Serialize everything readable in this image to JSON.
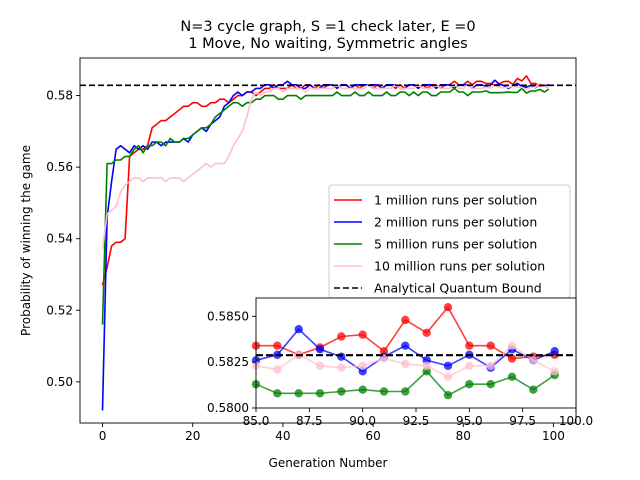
{
  "chart_data": [
    {
      "type": "line",
      "title": "N=3 cycle graph, S =1 check later, E =0\n1 Move, No waiting, Symmetric angles",
      "xlabel": "Generation Number",
      "ylabel": "Probability of winning the game",
      "xlim": [
        -5,
        105
      ],
      "ylim": [
        0.4885,
        0.5905
      ],
      "xticks": [
        0,
        20,
        40,
        60,
        80,
        100
      ],
      "yticks": [
        0.5,
        0.52,
        0.54,
        0.56,
        0.58
      ],
      "ytick_labels": [
        "0.50",
        "0.52",
        "0.54",
        "0.56",
        "0.58"
      ],
      "grid": false,
      "legend": "center-right",
      "reference_line": {
        "name": "Analytical Quantum Bound",
        "value": 0.58288,
        "color": "#000000",
        "style": "dashed"
      },
      "series": [
        {
          "name": "1 million runs per solution",
          "color": "#ff0000",
          "x": [
            0,
            1,
            2,
            3,
            4,
            5,
            6,
            7,
            8,
            9,
            10,
            11,
            12,
            13,
            14,
            15,
            16,
            17,
            18,
            19,
            20,
            21,
            22,
            23,
            24,
            25,
            26,
            27,
            28,
            29,
            30,
            31,
            32,
            33,
            34,
            35,
            36,
            37,
            38,
            39,
            40,
            41,
            42,
            43,
            44,
            45,
            46,
            47,
            48,
            49,
            50,
            51,
            52,
            53,
            54,
            55,
            56,
            57,
            58,
            59,
            60,
            61,
            62,
            63,
            64,
            65,
            66,
            67,
            68,
            69,
            70,
            71,
            72,
            73,
            74,
            75,
            76,
            77,
            78,
            79,
            80,
            81,
            82,
            83,
            84,
            85,
            86,
            87,
            88,
            89,
            90,
            91,
            92,
            93,
            94,
            95,
            96,
            97,
            98,
            99
          ],
          "values": [
            0.527,
            0.532,
            0.538,
            0.539,
            0.539,
            0.54,
            0.563,
            0.564,
            0.565,
            0.565,
            0.566,
            0.571,
            0.572,
            0.573,
            0.573,
            0.574,
            0.575,
            0.576,
            0.577,
            0.577,
            0.578,
            0.578,
            0.577,
            0.577,
            0.578,
            0.578,
            0.579,
            0.579,
            0.578,
            0.579,
            0.58,
            0.58,
            0.581,
            0.581,
            0.58,
            0.581,
            0.582,
            0.582,
            0.583,
            0.582,
            0.582,
            0.582,
            0.583,
            0.582,
            0.582,
            0.583,
            0.583,
            0.582,
            0.583,
            0.582,
            0.583,
            0.583,
            0.582,
            0.583,
            0.583,
            0.582,
            0.583,
            0.582,
            0.583,
            0.583,
            0.582,
            0.583,
            0.582,
            0.583,
            0.583,
            0.582,
            0.583,
            0.582,
            0.583,
            0.583,
            0.582,
            0.583,
            0.582,
            0.583,
            0.583,
            0.582,
            0.583,
            0.583,
            0.584,
            0.583,
            0.583,
            0.584,
            0.583,
            0.584,
            0.584,
            0.5834,
            0.5834,
            0.5829,
            0.5833,
            0.5839,
            0.584,
            0.5831,
            0.5848,
            0.5841,
            0.5855,
            0.5834,
            0.5834,
            0.5827,
            0.5828,
            0.5829
          ]
        },
        {
          "name": "2 million runs per solution",
          "color": "#0000ff",
          "x": [
            0,
            1,
            2,
            3,
            4,
            5,
            6,
            7,
            8,
            9,
            10,
            11,
            12,
            13,
            14,
            15,
            16,
            17,
            18,
            19,
            20,
            21,
            22,
            23,
            24,
            25,
            26,
            27,
            28,
            29,
            30,
            31,
            32,
            33,
            34,
            35,
            36,
            37,
            38,
            39,
            40,
            41,
            42,
            43,
            44,
            45,
            46,
            47,
            48,
            49,
            50,
            51,
            52,
            53,
            54,
            55,
            56,
            57,
            58,
            59,
            60,
            61,
            62,
            63,
            64,
            65,
            66,
            67,
            68,
            69,
            70,
            71,
            72,
            73,
            74,
            75,
            76,
            77,
            78,
            79,
            80,
            81,
            82,
            83,
            84,
            85,
            86,
            87,
            88,
            89,
            90,
            91,
            92,
            93,
            94,
            95,
            96,
            97,
            98,
            99
          ],
          "values": [
            0.492,
            0.546,
            0.556,
            0.565,
            0.566,
            0.565,
            0.564,
            0.566,
            0.565,
            0.566,
            0.565,
            0.567,
            0.567,
            0.566,
            0.567,
            0.567,
            0.567,
            0.567,
            0.568,
            0.567,
            0.569,
            0.57,
            0.571,
            0.57,
            0.572,
            0.573,
            0.574,
            0.577,
            0.578,
            0.58,
            0.581,
            0.58,
            0.581,
            0.581,
            0.582,
            0.582,
            0.583,
            0.583,
            0.582,
            0.583,
            0.583,
            0.584,
            0.583,
            0.583,
            0.582,
            0.582,
            0.583,
            0.582,
            0.582,
            0.583,
            0.583,
            0.583,
            0.582,
            0.583,
            0.583,
            0.582,
            0.583,
            0.583,
            0.583,
            0.583,
            0.583,
            0.583,
            0.582,
            0.583,
            0.583,
            0.583,
            0.582,
            0.582,
            0.583,
            0.583,
            0.582,
            0.583,
            0.583,
            0.583,
            0.582,
            0.583,
            0.583,
            0.583,
            0.582,
            0.583,
            0.583,
            0.583,
            0.582,
            0.583,
            0.583,
            0.5826,
            0.5829,
            0.5843,
            0.5832,
            0.5828,
            0.582,
            0.5828,
            0.5834,
            0.5826,
            0.5823,
            0.5829,
            0.5822,
            0.5832,
            0.5826,
            0.5831
          ]
        },
        {
          "name": "5 million runs per solution",
          "color": "#008000",
          "x": [
            0,
            1,
            2,
            3,
            4,
            5,
            6,
            7,
            8,
            9,
            10,
            11,
            12,
            13,
            14,
            15,
            16,
            17,
            18,
            19,
            20,
            21,
            22,
            23,
            24,
            25,
            26,
            27,
            28,
            29,
            30,
            31,
            32,
            33,
            34,
            35,
            36,
            37,
            38,
            39,
            40,
            41,
            42,
            43,
            44,
            45,
            46,
            47,
            48,
            49,
            50,
            51,
            52,
            53,
            54,
            55,
            56,
            57,
            58,
            59,
            60,
            61,
            62,
            63,
            64,
            65,
            66,
            67,
            68,
            69,
            70,
            71,
            72,
            73,
            74,
            75,
            76,
            77,
            78,
            79,
            80,
            81,
            82,
            83,
            84,
            85,
            86,
            87,
            88,
            89,
            90,
            91,
            92,
            93,
            94,
            95,
            96,
            97,
            98,
            99
          ],
          "values": [
            0.516,
            0.561,
            0.561,
            0.562,
            0.562,
            0.563,
            0.563,
            0.565,
            0.566,
            0.564,
            0.566,
            0.566,
            0.567,
            0.567,
            0.566,
            0.568,
            0.567,
            0.567,
            0.568,
            0.568,
            0.569,
            0.57,
            0.571,
            0.571,
            0.572,
            0.574,
            0.575,
            0.576,
            0.577,
            0.578,
            0.578,
            0.577,
            0.578,
            0.578,
            0.579,
            0.579,
            0.58,
            0.58,
            0.58,
            0.579,
            0.579,
            0.58,
            0.58,
            0.58,
            0.579,
            0.58,
            0.58,
            0.58,
            0.58,
            0.58,
            0.58,
            0.58,
            0.581,
            0.58,
            0.58,
            0.58,
            0.581,
            0.58,
            0.58,
            0.581,
            0.58,
            0.58,
            0.58,
            0.581,
            0.58,
            0.58,
            0.581,
            0.581,
            0.58,
            0.581,
            0.58,
            0.581,
            0.581,
            0.58,
            0.58,
            0.581,
            0.581,
            0.581,
            0.582,
            0.581,
            0.581,
            0.58,
            0.581,
            0.581,
            0.581,
            0.5813,
            0.5808,
            0.5808,
            0.5808,
            0.5809,
            0.581,
            0.5809,
            0.5809,
            0.582,
            0.5807,
            0.5813,
            0.5813,
            0.5817,
            0.581,
            0.5818
          ]
        },
        {
          "name": "10 million runs per solution",
          "color": "#ffc0cb",
          "x": [
            0,
            1,
            2,
            3,
            4,
            5,
            6,
            7,
            8,
            9,
            10,
            11,
            12,
            13,
            14,
            15,
            16,
            17,
            18,
            19,
            20,
            21,
            22,
            23,
            24,
            25,
            26,
            27,
            28,
            29,
            30,
            31,
            32,
            33,
            34,
            35,
            36,
            37,
            38,
            39,
            40,
            41,
            42,
            43,
            44,
            45,
            46,
            47,
            48,
            49,
            50,
            51,
            52,
            53,
            54,
            55,
            56,
            57,
            58,
            59,
            60,
            61,
            62,
            63,
            64,
            65,
            66,
            67,
            68,
            69,
            70,
            71,
            72,
            73,
            74,
            75,
            76,
            77,
            78,
            79,
            80,
            81,
            82,
            83,
            84,
            85,
            86,
            87,
            88,
            89,
            90,
            91,
            92,
            93,
            94,
            95,
            96,
            97,
            98,
            99
          ],
          "values": [
            0.537,
            0.547,
            0.548,
            0.549,
            0.553,
            0.555,
            0.556,
            0.557,
            0.557,
            0.556,
            0.557,
            0.557,
            0.557,
            0.557,
            0.556,
            0.557,
            0.557,
            0.557,
            0.556,
            0.557,
            0.558,
            0.559,
            0.56,
            0.561,
            0.56,
            0.561,
            0.561,
            0.561,
            0.563,
            0.566,
            0.568,
            0.57,
            0.574,
            0.579,
            0.581,
            0.58,
            0.581,
            0.581,
            0.582,
            0.582,
            0.581,
            0.582,
            0.582,
            0.582,
            0.582,
            0.581,
            0.582,
            0.582,
            0.582,
            0.582,
            0.582,
            0.582,
            0.583,
            0.582,
            0.582,
            0.582,
            0.582,
            0.582,
            0.582,
            0.583,
            0.582,
            0.582,
            0.582,
            0.582,
            0.582,
            0.583,
            0.582,
            0.582,
            0.582,
            0.582,
            0.583,
            0.582,
            0.582,
            0.582,
            0.583,
            0.582,
            0.582,
            0.582,
            0.583,
            0.582,
            0.582,
            0.583,
            0.582,
            0.582,
            0.582,
            0.5823,
            0.5821,
            0.5829,
            0.5823,
            0.5822,
            0.5823,
            0.5827,
            0.5824,
            0.5823,
            0.5817,
            0.5823,
            0.5823,
            0.5834,
            0.5826,
            0.582
          ]
        }
      ]
    },
    {
      "type": "scatter",
      "title": "",
      "xlabel": "",
      "ylabel": "",
      "xlim": [
        85.0,
        100.0
      ],
      "ylim": [
        0.58,
        0.586
      ],
      "xticks": [
        85.0,
        87.5,
        90.0,
        92.5,
        95.0,
        97.5,
        100.0
      ],
      "xtick_labels": [
        "85.0",
        "87.5",
        "90.0",
        "92.5",
        "95.0",
        "97.5",
        "100.0"
      ],
      "yticks": [
        0.58,
        0.5825,
        0.585
      ],
      "ytick_labels": [
        "0.5800",
        "0.5825",
        "0.5850"
      ],
      "grid": false,
      "reference_line": {
        "value": 0.58288,
        "color": "#000000",
        "style": "dashed"
      },
      "series": [
        {
          "color": "#ff0000",
          "x": [
            85,
            86,
            87,
            88,
            89,
            90,
            91,
            92,
            93,
            94,
            95,
            96,
            97,
            98,
            99
          ],
          "values": [
            0.5834,
            0.5834,
            0.5829,
            0.5833,
            0.5839,
            0.584,
            0.5831,
            0.5848,
            0.5841,
            0.5855,
            0.5834,
            0.5834,
            0.5827,
            0.5828,
            0.5829
          ]
        },
        {
          "color": "#0000ff",
          "x": [
            85,
            86,
            87,
            88,
            89,
            90,
            91,
            92,
            93,
            94,
            95,
            96,
            97,
            98,
            99
          ],
          "values": [
            0.5826,
            0.5829,
            0.5843,
            0.5832,
            0.5828,
            0.582,
            0.5828,
            0.5834,
            0.5826,
            0.5823,
            0.5829,
            0.5822,
            0.5832,
            0.5826,
            0.5831
          ]
        },
        {
          "color": "#008000",
          "x": [
            85,
            86,
            87,
            88,
            89,
            90,
            91,
            92,
            93,
            94,
            95,
            96,
            97,
            98,
            99
          ],
          "values": [
            0.5813,
            0.5808,
            0.5808,
            0.5808,
            0.5809,
            0.581,
            0.5809,
            0.5809,
            0.582,
            0.5807,
            0.5813,
            0.5813,
            0.5817,
            0.581,
            0.5818
          ]
        },
        {
          "color": "#ffc0cb",
          "x": [
            85,
            86,
            87,
            88,
            89,
            90,
            91,
            92,
            93,
            94,
            95,
            96,
            97,
            98,
            99
          ],
          "values": [
            0.5823,
            0.5821,
            0.5829,
            0.5823,
            0.5822,
            0.5823,
            0.5827,
            0.5824,
            0.5823,
            0.5817,
            0.5823,
            0.5823,
            0.5834,
            0.5826,
            0.582
          ]
        }
      ]
    }
  ]
}
